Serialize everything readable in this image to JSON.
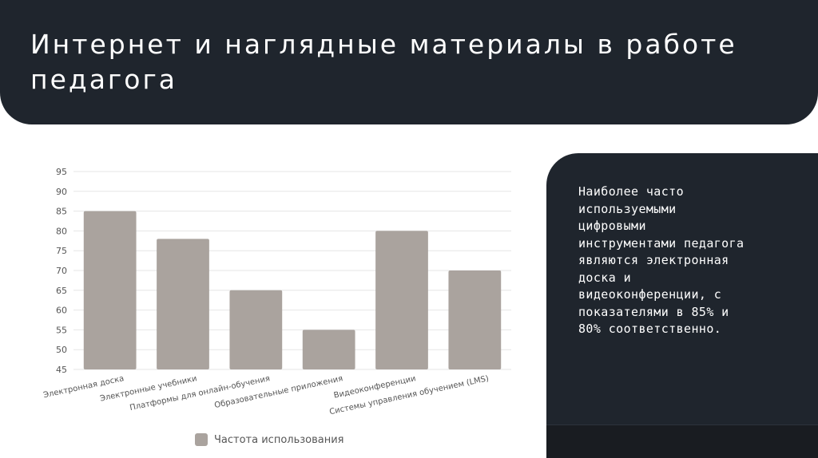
{
  "slide": {
    "title": "Интернет и наглядные материалы в работе педагога"
  },
  "side_panel": {
    "text": "Наиболее часто\nиспользуемыми\nцифровыми\nинструментами педагога\nявляются электронная\nдоска и\nвидеоконференции, с\nпоказателями в 85% и\n80% соответственно."
  },
  "colors": {
    "bar": "#aaa39e",
    "dark": "#1f252d",
    "grid": "#e6e6e6",
    "text": "#555555"
  },
  "chart_data": {
    "type": "bar",
    "categories": [
      "Электронная доска",
      "Электронные учебники",
      "Платформы для онлайн-обучения",
      "Образовательные приложения",
      "Видеоконференции",
      "Системы управления обучением (LMS)"
    ],
    "series": [
      {
        "name": "Частота использования",
        "values": [
          85,
          78,
          65,
          55,
          80,
          70
        ]
      }
    ],
    "ylim": [
      45,
      95
    ],
    "yticks": [
      "95",
      "90",
      "85",
      "80",
      "75",
      "70",
      "65",
      "60",
      "55",
      "50",
      "45"
    ],
    "grid": true,
    "legend_position": "bottom",
    "title": "",
    "xlabel": "",
    "ylabel": ""
  }
}
